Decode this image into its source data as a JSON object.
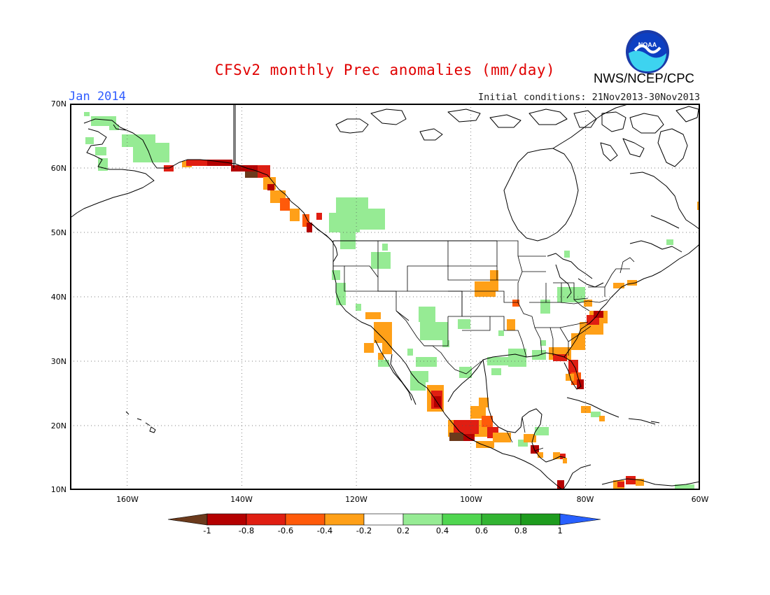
{
  "header": {
    "title": "CFSv2 monthly Prec anomalies (mm/day)",
    "month": "Jan 2014",
    "initial_conditions": "Initial conditions: 21Nov2013-30Nov2013",
    "agency": "NWS/NCEP/CPC",
    "logo_text": "NOAA"
  },
  "map": {
    "projection": "cylindrical lat-lon",
    "lon_range": [
      -170,
      -60
    ],
    "lat_range": [
      10,
      70
    ],
    "grid": "dotted",
    "lat_labels": [
      "70N",
      "60N",
      "50N",
      "40N",
      "30N",
      "20N",
      "10N"
    ],
    "lon_labels": [
      "160W",
      "140W",
      "120W",
      "100W",
      "80W",
      "60W"
    ],
    "anomaly_regions": [
      {
        "region": "Southern Alaska / Gulf of Alaska coast",
        "category": "-0.6 to -1"
      },
      {
        "region": "British Columbia coast",
        "category": "-0.2 to -0.8"
      },
      {
        "region": "Western Alaska",
        "category": "0.2 to 0.4"
      },
      {
        "region": "Southern British Columbia interior",
        "category": "0.2 to 0.4"
      },
      {
        "region": "Idaho / Montana",
        "category": "0.2 to 0.6"
      },
      {
        "region": "Southern California",
        "category": "-0.2 to -0.6"
      },
      {
        "region": "Iowa / Nebraska",
        "category": "-0.2 to -0.4"
      },
      {
        "region": "Carolinas / Virginia",
        "category": "-0.2 to -0.8"
      },
      {
        "region": "Florida",
        "category": "-0.2 to -0.8"
      },
      {
        "region": "Gulf Coast",
        "category": "0.2 to 0.4"
      },
      {
        "region": "Western Mexico",
        "category": "-0.4 to -1"
      },
      {
        "region": "Southern Mexico / Central America",
        "category": "-0.2 to -1"
      },
      {
        "region": "Caribbean",
        "category": "-0.2 to -0.6"
      }
    ],
    "colors": {
      "ocean": "#ffffff",
      "coastline": "#000000",
      "border": "#000000"
    }
  },
  "colorbar": {
    "labels": [
      "-1",
      "-0.8",
      "-0.6",
      "-0.4",
      "-0.2",
      "0.2",
      "0.4",
      "0.6",
      "0.8",
      "1"
    ],
    "colors": [
      "#6b3a1c",
      "#b40000",
      "#e01e12",
      "#ff5a0a",
      "#ffa018",
      "#ffffff",
      "#96eb94",
      "#50d650",
      "#32b432",
      "#1e9c1e",
      "#2860ff"
    ]
  }
}
